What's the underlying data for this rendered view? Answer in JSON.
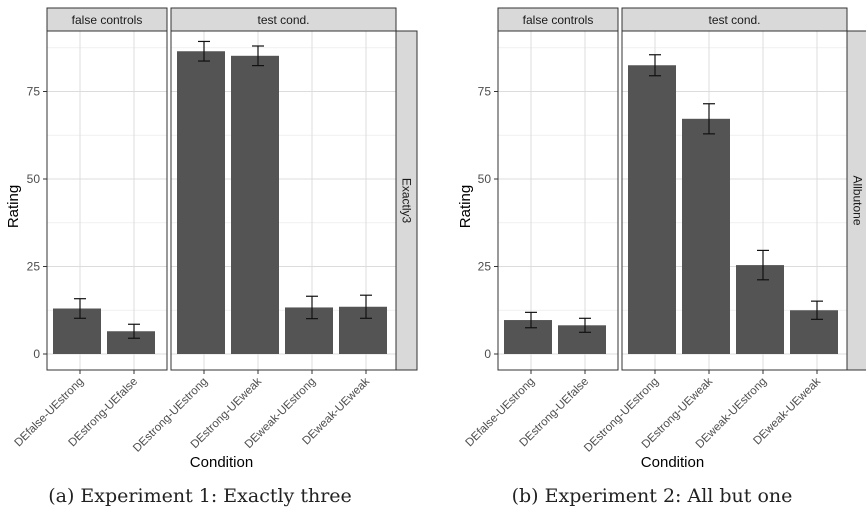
{
  "charts": [
    {
      "caption": "(a) Experiment 1: Exactly three"
    },
    {
      "caption": "(b) Experiment 2: All but one"
    }
  ],
  "chart_data": [
    {
      "type": "bar",
      "title": "",
      "xlabel": "Condition",
      "ylabel": "Rating",
      "ylim": [
        0,
        90
      ],
      "yticks": [
        0,
        25,
        50,
        75
      ],
      "grid": true,
      "row_strip": "Exactly3",
      "facets": [
        {
          "label": "false controls",
          "categories": [
            "DEfalse-UEstrong",
            "DEstrong-UEfalse"
          ],
          "values": [
            13,
            6.5
          ],
          "err": [
            2.8,
            2.0
          ]
        },
        {
          "label": "test cond.",
          "categories": [
            "DEstrong-UEstrong",
            "DEstrong-UEweak",
            "DEweak-UEstrong",
            "DEweak-UEweak"
          ],
          "values": [
            86.5,
            85.2,
            13.3,
            13.5
          ],
          "err": [
            2.8,
            2.8,
            3.2,
            3.3
          ]
        }
      ]
    },
    {
      "type": "bar",
      "title": "",
      "xlabel": "Condition",
      "ylabel": "Rating",
      "ylim": [
        0,
        90
      ],
      "yticks": [
        0,
        25,
        50,
        75
      ],
      "grid": true,
      "row_strip": "Allbutone",
      "facets": [
        {
          "label": "false controls",
          "categories": [
            "DEfalse-UEstrong",
            "DEstrong-UEfalse"
          ],
          "values": [
            9.7,
            8.2
          ],
          "err": [
            2.2,
            2.0
          ]
        },
        {
          "label": "test cond.",
          "categories": [
            "DEstrong-UEstrong",
            "DEstrong-UEweak",
            "DEweak-UEstrong",
            "DEweak-UEweak"
          ],
          "values": [
            82.5,
            67.2,
            25.4,
            12.5
          ],
          "err": [
            3.0,
            4.3,
            4.2,
            2.6
          ]
        }
      ]
    }
  ]
}
